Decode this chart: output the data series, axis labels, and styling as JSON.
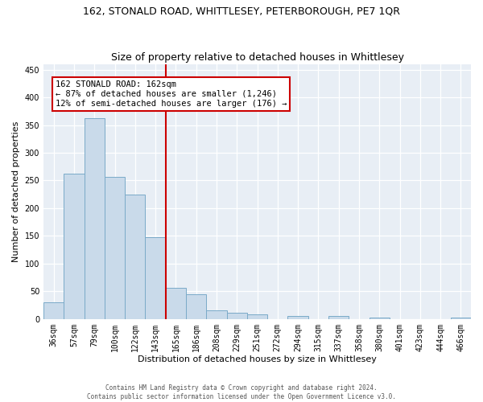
{
  "title1": "162, STONALD ROAD, WHITTLESEY, PETERBOROUGH, PE7 1QR",
  "title2": "Size of property relative to detached houses in Whittlesey",
  "xlabel": "Distribution of detached houses by size in Whittlesey",
  "ylabel": "Number of detached properties",
  "bar_color": "#c9daea",
  "bar_edge_color": "#7aaac8",
  "annotation_line_color": "#cc0000",
  "annotation_text": "162 STONALD ROAD: 162sqm\n← 87% of detached houses are smaller (1,246)\n12% of semi-detached houses are larger (176) →",
  "categories": [
    "36sqm",
    "57sqm",
    "79sqm",
    "100sqm",
    "122sqm",
    "143sqm",
    "165sqm",
    "186sqm",
    "208sqm",
    "229sqm",
    "251sqm",
    "272sqm",
    "294sqm",
    "315sqm",
    "337sqm",
    "358sqm",
    "380sqm",
    "401sqm",
    "423sqm",
    "444sqm",
    "466sqm"
  ],
  "values": [
    30,
    262,
    362,
    257,
    224,
    148,
    56,
    44,
    16,
    12,
    9,
    0,
    6,
    0,
    5,
    0,
    3,
    0,
    0,
    0,
    3
  ],
  "ylim": [
    0,
    460
  ],
  "yticks": [
    0,
    50,
    100,
    150,
    200,
    250,
    300,
    350,
    400,
    450
  ],
  "vline_index": 6,
  "footer": "Contains HM Land Registry data © Crown copyright and database right 2024.\nContains public sector information licensed under the Open Government Licence v3.0.",
  "fig_bg": "#ffffff",
  "axes_bg": "#e8eef5",
  "grid_color": "#ffffff",
  "title_fontsize": 9,
  "subtitle_fontsize": 9,
  "label_fontsize": 8,
  "tick_fontsize": 7
}
